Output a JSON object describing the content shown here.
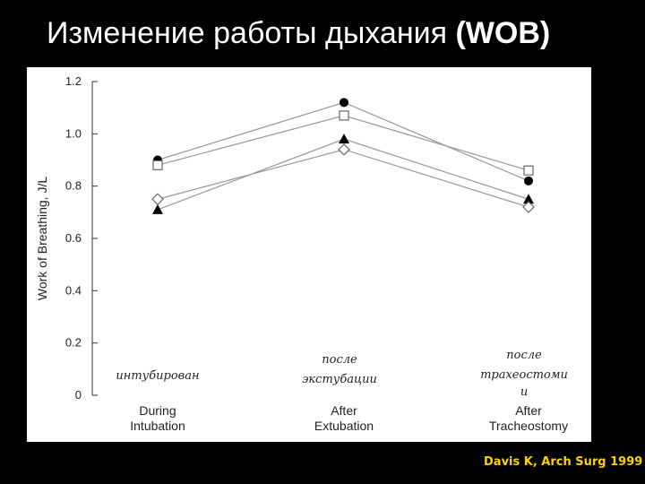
{
  "slide": {
    "title_prefix": "Изменение работы дыхания ",
    "title_bold": "(WOB)",
    "citation": "Davis K, Arch Surg 1999"
  },
  "chart_data": {
    "type": "line",
    "ylabel": "Work of Breathing, J/L",
    "ylim": [
      0,
      1.2
    ],
    "yticks": [
      "0",
      "0.2",
      "0.4",
      "0.6",
      "0.8",
      "1.0",
      "1.2"
    ],
    "categories": [
      [
        "During",
        "Intubation"
      ],
      [
        "After",
        "Extubation"
      ],
      [
        "After",
        "Tracheostomy"
      ]
    ],
    "annotations": [
      [
        "интубирован"
      ],
      [
        "после",
        "экстубации"
      ],
      [
        "после",
        "трахеостоми",
        "и"
      ]
    ],
    "series": [
      {
        "marker": "filled-circle",
        "values": [
          0.9,
          1.12,
          0.82
        ]
      },
      {
        "marker": "open-square",
        "values": [
          0.88,
          1.07,
          0.86
        ]
      },
      {
        "marker": "filled-triangle",
        "values": [
          0.71,
          0.98,
          0.75
        ]
      },
      {
        "marker": "open-diamond",
        "values": [
          0.75,
          0.94,
          0.72
        ]
      }
    ],
    "grid": false,
    "colors": {
      "line": "#999999",
      "marker": "#000000"
    }
  }
}
